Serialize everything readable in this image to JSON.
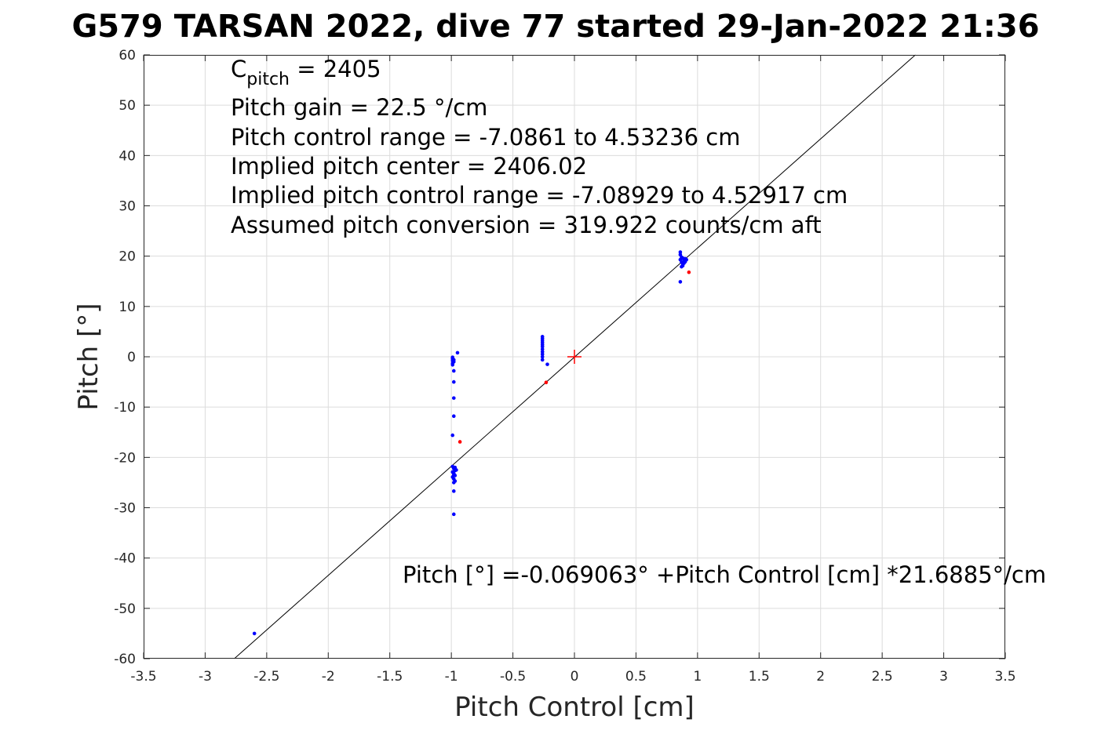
{
  "chart_data": {
    "type": "scatter",
    "title": "G579 TARSAN 2022, dive 77 started 29-Jan-2022 21:36",
    "xlabel": "Pitch Control [cm]",
    "ylabel": "Pitch [°]",
    "xlim": [
      -3.5,
      3.5
    ],
    "ylim": [
      -60,
      60
    ],
    "xticks": [
      -3.5,
      -3,
      -2.5,
      -2,
      -1.5,
      -1,
      -0.5,
      0,
      0.5,
      1,
      1.5,
      2,
      2.5,
      3,
      3.5
    ],
    "yticks": [
      -60,
      -50,
      -40,
      -30,
      -20,
      -10,
      0,
      10,
      20,
      30,
      40,
      50,
      60
    ],
    "xtick_labels": [
      "-3.5",
      "-3",
      "-2.5",
      "-2",
      "-1.5",
      "-1",
      "-0.5",
      "0",
      "0.5",
      "1",
      "1.5",
      "2",
      "2.5",
      "3",
      "3.5"
    ],
    "ytick_labels": [
      "-60",
      "-50",
      "-40",
      "-30",
      "-20",
      "-10",
      "0",
      "10",
      "20",
      "30",
      "40",
      "50",
      "60"
    ],
    "grid": true,
    "fit_line": {
      "intercept": -0.069063,
      "slope": 21.6885
    },
    "center_marker": {
      "x": 0,
      "y": 0,
      "color": "#ff0000"
    },
    "annotations": {
      "cpitch_prefix": "C",
      "cpitch_sub": "pitch",
      "cpitch_value": " = 2405",
      "lines": [
        "Pitch gain = 22.5 °/cm",
        "Pitch control range = -7.0861 to 4.53236 cm",
        "Implied pitch center = 2406.02",
        "Implied pitch control range = -7.08929 to 4.52917 cm",
        "Assumed pitch conversion = 319.922 counts/cm aft"
      ],
      "fit_equation": "Pitch [°] =-0.069063° +Pitch Control [cm] *21.6885°/cm"
    },
    "series": [
      {
        "color": "#0000ff",
        "points": [
          [
            -2.6,
            -55.0
          ],
          [
            -0.99,
            -0.1
          ],
          [
            -0.99,
            -0.4
          ],
          [
            -0.99,
            -0.8
          ],
          [
            -0.99,
            -1.3
          ],
          [
            -0.98,
            -0.6
          ],
          [
            -0.98,
            -1.0
          ],
          [
            -0.99,
            -1.6
          ],
          [
            -0.98,
            -2.8
          ],
          [
            -0.98,
            -5.0
          ],
          [
            -0.98,
            -8.2
          ],
          [
            -0.98,
            -11.8
          ],
          [
            -0.99,
            -15.6
          ],
          [
            -0.99,
            -21.8
          ],
          [
            -0.98,
            -22.2
          ],
          [
            -0.97,
            -22.6
          ],
          [
            -0.99,
            -22.9
          ],
          [
            -0.98,
            -23.2
          ],
          [
            -0.97,
            -23.6
          ],
          [
            -0.99,
            -23.9
          ],
          [
            -0.98,
            -24.3
          ],
          [
            -0.97,
            -22.0
          ],
          [
            -0.96,
            -22.5
          ],
          [
            -0.98,
            -23.5
          ],
          [
            -0.97,
            -24.7
          ],
          [
            -0.98,
            -25.0
          ],
          [
            -0.98,
            -26.7
          ],
          [
            -0.98,
            -31.3
          ],
          [
            -0.95,
            0.8
          ],
          [
            -0.26,
            4.0
          ],
          [
            -0.26,
            3.6
          ],
          [
            -0.26,
            3.2
          ],
          [
            -0.26,
            2.8
          ],
          [
            -0.26,
            2.4
          ],
          [
            -0.26,
            2.0
          ],
          [
            -0.26,
            1.5
          ],
          [
            -0.26,
            1.0
          ],
          [
            -0.26,
            0.5
          ],
          [
            -0.26,
            0.0
          ],
          [
            -0.26,
            -0.6
          ],
          [
            -0.22,
            -1.5
          ],
          [
            0.86,
            20.8
          ],
          [
            0.86,
            20.3
          ],
          [
            0.87,
            19.8
          ],
          [
            0.86,
            19.3
          ],
          [
            0.87,
            18.8
          ],
          [
            0.88,
            18.4
          ],
          [
            0.87,
            17.9
          ],
          [
            0.88,
            19.6
          ],
          [
            0.89,
            19.2
          ],
          [
            0.89,
            18.6
          ],
          [
            0.88,
            18.1
          ],
          [
            0.9,
            19.5
          ],
          [
            0.9,
            18.9
          ],
          [
            0.91,
            19.3
          ],
          [
            0.86,
            14.9
          ]
        ]
      },
      {
        "color": "#ff0000",
        "points": [
          [
            -0.93,
            -16.9
          ],
          [
            -0.23,
            -5.1
          ],
          [
            0.93,
            16.8
          ]
        ]
      }
    ]
  }
}
